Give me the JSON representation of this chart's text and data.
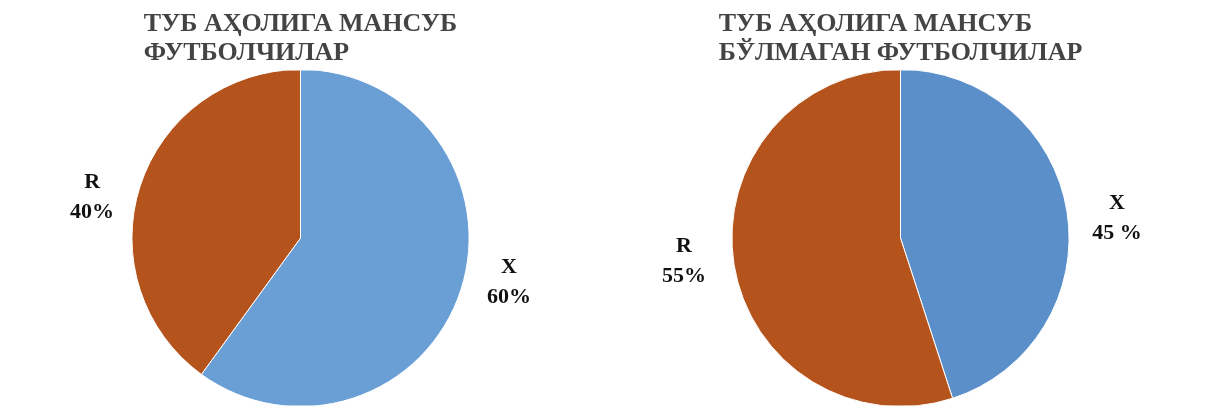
{
  "chart_data": [
    {
      "type": "pie",
      "title": "ТУБ АҲОЛИГА МАНСУБ ФУТБОЛЧИЛАР",
      "categories": [
        "X",
        "R"
      ],
      "values": [
        60,
        40
      ],
      "colors": [
        "#6a9fd6",
        "#b5531d"
      ],
      "value_labels": [
        "60%",
        "40%"
      ]
    },
    {
      "type": "pie",
      "title": "ТУБ АҲОЛИГА МАНСУБ БЎЛМАГАН ФУТБОЛЧИЛАР",
      "categories": [
        "X",
        "R"
      ],
      "values": [
        45,
        55
      ],
      "colors": [
        "#5b8fc9",
        "#b5531d"
      ],
      "value_labels": [
        "45 %",
        "55%"
      ]
    }
  ]
}
